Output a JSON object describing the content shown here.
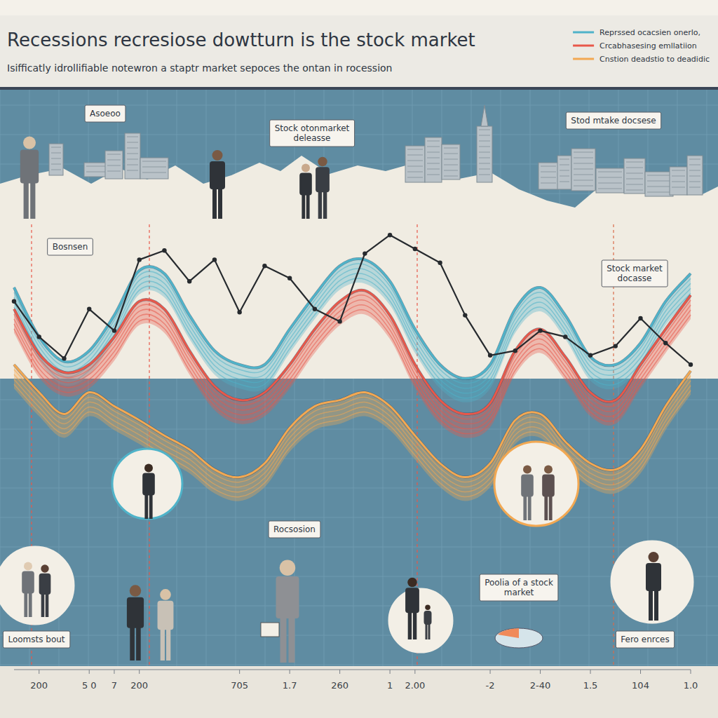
{
  "chart_data": {
    "type": "line",
    "title": "Recessions recresiose dowtturn is the stock market",
    "subtitle": "Isifficatly idrollifiable notewron a staptr market sepoces the ontan in rocession",
    "categories": [
      null,
      "200",
      null,
      "5 0",
      "7",
      "200",
      null,
      null,
      null,
      "705",
      null,
      "1.7",
      null,
      "260",
      null,
      "1",
      "2.00",
      null,
      null,
      "-2",
      null,
      "2-40",
      null,
      "1.5",
      null,
      "104",
      null,
      "1.0"
    ],
    "series": [
      {
        "name": "Reprssed ocacsien onerlo,",
        "color": "#4fb3c9",
        "values": [
          75,
          59,
          51,
          54.5,
          66,
          80.5,
          79.5,
          66,
          54.5,
          50,
          50,
          61.5,
          72.5,
          82,
          84,
          77,
          61.5,
          50,
          45.5,
          50,
          68,
          75,
          66,
          52.5,
          50,
          57,
          70.5,
          79.5
        ]
      },
      {
        "name": "Crcabhasesing emllatiion",
        "color": "#e8584a",
        "values": [
          68,
          53.5,
          47.5,
          50,
          59,
          70.5,
          68,
          54.5,
          43,
          38.5,
          41,
          50,
          61.5,
          70.5,
          74,
          66,
          50,
          38.5,
          34,
          37.5,
          54.5,
          61.5,
          52.5,
          41,
          38.5,
          50,
          61.5,
          72.5
        ]
      },
      {
        "name": "Cnstion deadstio to deadidic",
        "color": "#f2a852",
        "values": [
          50,
          41,
          34,
          41,
          36.5,
          32,
          27,
          22.5,
          16,
          13.5,
          18,
          29.5,
          36.5,
          38.5,
          41,
          36.5,
          27,
          18,
          13.5,
          18,
          32,
          34,
          25,
          18,
          16,
          22.5,
          36.5,
          48
        ]
      },
      {
        "color": "#262a2e",
        "marker": "circle",
        "values": [
          70.5,
          59,
          52,
          68,
          61,
          84,
          87,
          77,
          84,
          67,
          82,
          78,
          68,
          64,
          86,
          92,
          87.5,
          83,
          66,
          53,
          54.5,
          61,
          59,
          53,
          56,
          65,
          57,
          50
        ]
      }
    ],
    "ylim": [
      0,
      100
    ],
    "tick_labels": "x",
    "legend": "top-right",
    "annotations": [
      "Asoeoo",
      "Stock otonmarket deleasse",
      "Stod mtake docsese",
      "Bosnsen",
      "Stock market docasse",
      "Rocsosion",
      "Poolia of a stock market",
      "Loomsts bout",
      "Fero enrces"
    ]
  }
}
